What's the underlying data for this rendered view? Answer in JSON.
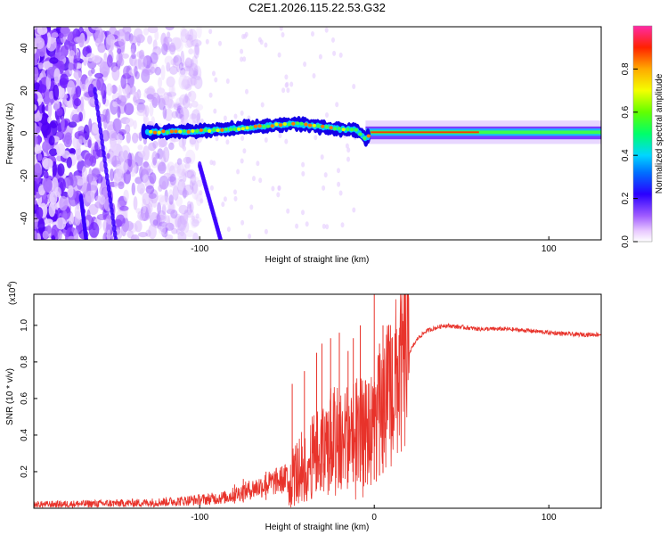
{
  "chart_data": [
    {
      "type": "heatmap",
      "title": "C2E1.2026.115.22.53.G32",
      "xlabel": "Height of straight line (km)",
      "ylabel": "Frequency (Hz)",
      "xlim": [
        -195,
        130
      ],
      "ylim": [
        -50,
        50
      ],
      "xticks": [
        -100,
        100
      ],
      "yticks": [
        -40,
        -20,
        0,
        20,
        40
      ],
      "colorbar": {
        "label": "Normalized spectral amplitude",
        "range": [
          0,
          1
        ],
        "ticks": [
          0.0,
          0.2,
          0.4,
          0.6,
          0.8
        ]
      },
      "features": {
        "signal_track": [
          {
            "x": -130,
            "y": 0.5
          },
          {
            "x": -110,
            "y": 0.8
          },
          {
            "x": -90,
            "y": 1.5
          },
          {
            "x": -70,
            "y": 2.8
          },
          {
            "x": -55,
            "y": 4.0
          },
          {
            "x": -45,
            "y": 4.5
          },
          {
            "x": -35,
            "y": 3.5
          },
          {
            "x": -20,
            "y": 2.0
          },
          {
            "x": -10,
            "y": 1.5
          },
          {
            "x": -5,
            "y": -2.5
          },
          {
            "x": 0,
            "y": 0.5
          },
          {
            "x": 20,
            "y": 0.5
          },
          {
            "x": 60,
            "y": 0.5
          },
          {
            "x": 130,
            "y": 0.5
          }
        ],
        "streaks": [
          {
            "x0": -160,
            "y0": 20,
            "x1": -148,
            "y1": -50
          },
          {
            "x0": -168,
            "y0": -30,
            "x1": -165,
            "y1": -50
          },
          {
            "x0": -100,
            "y0": -15,
            "x1": -88,
            "y1": -50
          }
        ]
      }
    },
    {
      "type": "line",
      "xlabel": "Height of straight line (km)",
      "ylabel": "SNR (10 * v/v)",
      "y_multiplier": "(x10",
      "y_multiplier_exp": "4",
      "xlim": [
        -195,
        130
      ],
      "ylim": [
        0,
        1.17
      ],
      "xticks": [
        -100,
        0,
        100
      ],
      "ytick_labels": [
        "0.2",
        "0.4",
        "0.6",
        "0.8",
        "1.0"
      ],
      "series_color": "#e8332b",
      "series": [
        {
          "name": "SNR",
          "points": [
            [
              -195,
              0.02
            ],
            [
              -160,
              0.025
            ],
            [
              -130,
              0.03
            ],
            [
              -110,
              0.04
            ],
            [
              -95,
              0.05
            ],
            [
              -85,
              0.06
            ],
            [
              -75,
              0.09
            ],
            [
              -65,
              0.12
            ],
            [
              -55,
              0.15
            ],
            [
              -48,
              0.17
            ],
            [
              -42,
              0.22
            ],
            [
              -35,
              0.28
            ],
            [
              -30,
              0.33
            ],
            [
              -25,
              0.38
            ],
            [
              -20,
              0.4
            ],
            [
              -15,
              0.4
            ],
            [
              -10,
              0.42
            ],
            [
              -5,
              0.4
            ],
            [
              0,
              0.45
            ],
            [
              5,
              0.55
            ],
            [
              10,
              0.65
            ],
            [
              15,
              0.75
            ],
            [
              20,
              0.85
            ],
            [
              25,
              0.93
            ],
            [
              30,
              0.97
            ],
            [
              40,
              1.0
            ],
            [
              50,
              0.99
            ],
            [
              60,
              0.98
            ],
            [
              75,
              0.98
            ],
            [
              90,
              0.97
            ],
            [
              100,
              0.96
            ],
            [
              115,
              0.95
            ],
            [
              130,
              0.95
            ]
          ],
          "spikes": [
            [
              -80,
              0.13
            ],
            [
              -75,
              0.16
            ],
            [
              -62,
              0.2
            ],
            [
              -47,
              0.68
            ],
            [
              -40,
              0.75
            ],
            [
              -33,
              0.85
            ],
            [
              -30,
              0.9
            ],
            [
              -25,
              0.93
            ],
            [
              -20,
              0.96
            ],
            [
              -15,
              0.86
            ],
            [
              -12,
              0.93
            ],
            [
              -8,
              1.0
            ],
            [
              -5,
              0.7
            ],
            [
              0,
              1.17
            ],
            [
              3,
              0.9
            ],
            [
              5,
              1.0
            ]
          ]
        }
      ]
    }
  ]
}
